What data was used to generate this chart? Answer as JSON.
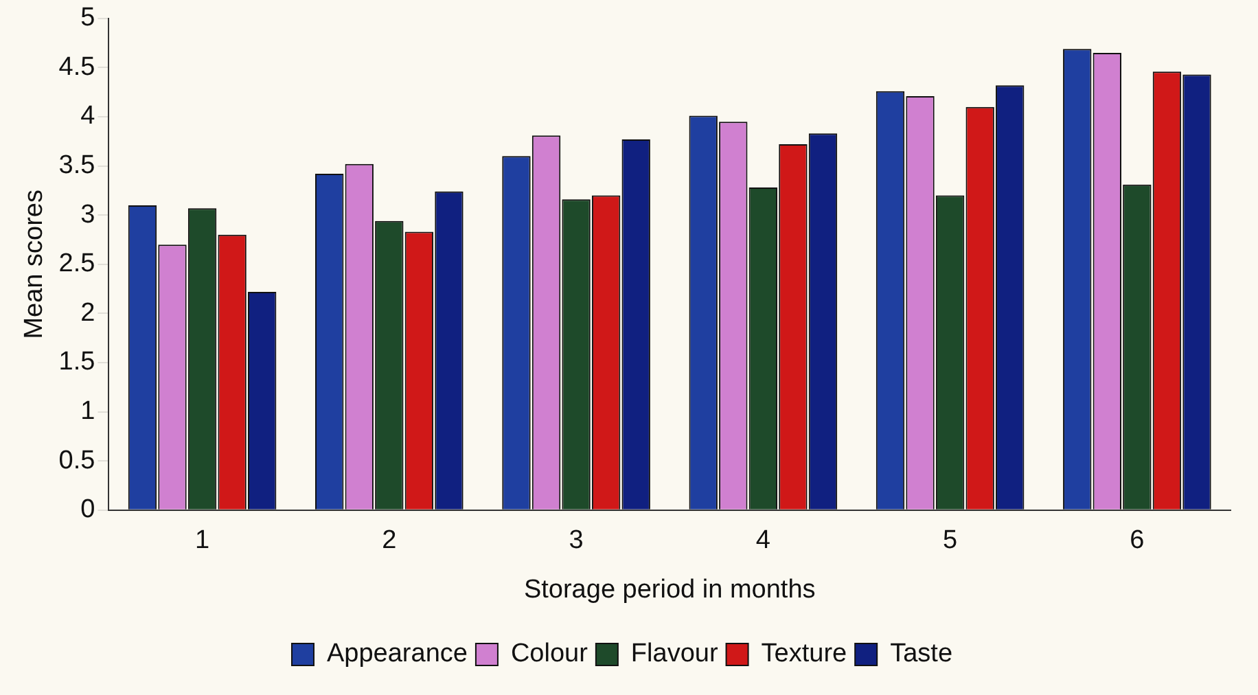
{
  "chart_data": {
    "type": "bar",
    "xlabel": "Storage period in months",
    "ylabel": "Mean scores",
    "categories": [
      "1",
      "2",
      "3",
      "4",
      "5",
      "6"
    ],
    "series": [
      {
        "name": "Appearance",
        "color": "#1f3fa0",
        "values": [
          3.1,
          3.42,
          3.6,
          4.01,
          4.26,
          4.69
        ]
      },
      {
        "name": "Colour",
        "color": "#d080d0",
        "values": [
          2.7,
          3.52,
          3.81,
          3.95,
          4.21,
          4.65
        ]
      },
      {
        "name": "Flavour",
        "color": "#1e4a2a",
        "values": [
          3.07,
          2.94,
          3.16,
          3.28,
          3.2,
          3.31
        ]
      },
      {
        "name": "Texture",
        "color": "#d01818",
        "values": [
          2.8,
          2.83,
          3.2,
          3.72,
          4.1,
          4.46
        ]
      },
      {
        "name": "Taste",
        "color": "#102080",
        "values": [
          2.22,
          3.24,
          3.77,
          3.83,
          4.32,
          4.43
        ]
      }
    ],
    "ylim": [
      0,
      5
    ],
    "yticks": [
      0,
      0.5,
      1,
      1.5,
      2,
      2.5,
      3,
      3.5,
      4,
      4.5,
      5
    ],
    "grid": false,
    "legend": "bottom"
  }
}
